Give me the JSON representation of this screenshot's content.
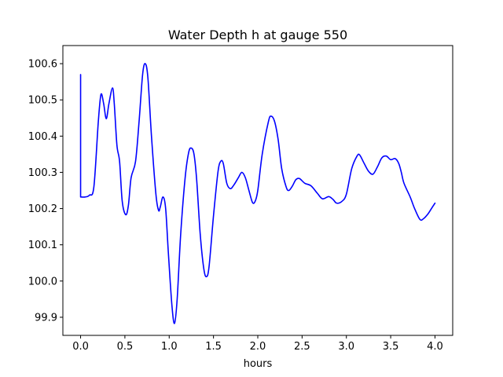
{
  "chart_data": {
    "type": "line",
    "title": "Water Depth h at gauge 550",
    "xlabel": "hours",
    "ylabel": "",
    "xlim": [
      -0.2,
      4.2
    ],
    "ylim": [
      99.85,
      100.65
    ],
    "grid": false,
    "x_ticks": [
      0.0,
      0.5,
      1.0,
      1.5,
      2.0,
      2.5,
      3.0,
      3.5,
      4.0
    ],
    "x_tick_labels": [
      "0.0",
      "0.5",
      "1.0",
      "1.5",
      "2.0",
      "2.5",
      "3.0",
      "3.5",
      "4.0"
    ],
    "y_ticks": [
      99.9,
      100.0,
      100.1,
      100.2,
      100.3,
      100.4,
      100.5,
      100.6
    ],
    "y_tick_labels": [
      "99.9",
      "100.0",
      "100.1",
      "100.2",
      "100.3",
      "100.4",
      "100.5",
      "100.6"
    ],
    "series": [
      {
        "color": "#0000ff",
        "points": [
          [
            0.0,
            100.57
          ],
          [
            0.0,
            100.232
          ],
          [
            0.05,
            100.232
          ],
          [
            0.1,
            100.237
          ],
          [
            0.15,
            100.26
          ],
          [
            0.2,
            100.44
          ],
          [
            0.23,
            100.515
          ],
          [
            0.26,
            100.49
          ],
          [
            0.29,
            100.448
          ],
          [
            0.32,
            100.49
          ],
          [
            0.36,
            100.533
          ],
          [
            0.38,
            100.49
          ],
          [
            0.41,
            100.375
          ],
          [
            0.44,
            100.33
          ],
          [
            0.47,
            100.22
          ],
          [
            0.51,
            100.183
          ],
          [
            0.54,
            100.21
          ],
          [
            0.57,
            100.285
          ],
          [
            0.62,
            100.33
          ],
          [
            0.66,
            100.44
          ],
          [
            0.7,
            100.57
          ],
          [
            0.73,
            100.6
          ],
          [
            0.76,
            100.56
          ],
          [
            0.8,
            100.4
          ],
          [
            0.85,
            100.24
          ],
          [
            0.88,
            100.195
          ],
          [
            0.9,
            100.205
          ],
          [
            0.93,
            100.232
          ],
          [
            0.96,
            100.2
          ],
          [
            0.99,
            100.08
          ],
          [
            1.03,
            99.935
          ],
          [
            1.06,
            99.883
          ],
          [
            1.09,
            99.95
          ],
          [
            1.13,
            100.13
          ],
          [
            1.18,
            100.285
          ],
          [
            1.22,
            100.355
          ],
          [
            1.25,
            100.367
          ],
          [
            1.28,
            100.35
          ],
          [
            1.31,
            100.28
          ],
          [
            1.35,
            100.13
          ],
          [
            1.39,
            100.035
          ],
          [
            1.42,
            100.012
          ],
          [
            1.45,
            100.04
          ],
          [
            1.5,
            100.18
          ],
          [
            1.55,
            100.3
          ],
          [
            1.58,
            100.33
          ],
          [
            1.61,
            100.325
          ],
          [
            1.65,
            100.27
          ],
          [
            1.69,
            100.255
          ],
          [
            1.73,
            100.265
          ],
          [
            1.78,
            100.285
          ],
          [
            1.82,
            100.3
          ],
          [
            1.86,
            100.285
          ],
          [
            1.9,
            100.25
          ],
          [
            1.94,
            100.217
          ],
          [
            1.97,
            100.22
          ],
          [
            2.0,
            100.25
          ],
          [
            2.05,
            100.35
          ],
          [
            2.12,
            100.44
          ],
          [
            2.15,
            100.455
          ],
          [
            2.19,
            100.44
          ],
          [
            2.23,
            100.39
          ],
          [
            2.27,
            100.31
          ],
          [
            2.32,
            100.26
          ],
          [
            2.35,
            100.25
          ],
          [
            2.39,
            100.262
          ],
          [
            2.43,
            100.28
          ],
          [
            2.47,
            100.283
          ],
          [
            2.53,
            100.27
          ],
          [
            2.6,
            100.263
          ],
          [
            2.67,
            100.243
          ],
          [
            2.73,
            100.227
          ],
          [
            2.8,
            100.233
          ],
          [
            2.85,
            100.225
          ],
          [
            2.89,
            100.215
          ],
          [
            2.95,
            100.22
          ],
          [
            3.0,
            100.24
          ],
          [
            3.06,
            100.31
          ],
          [
            3.12,
            100.345
          ],
          [
            3.15,
            100.348
          ],
          [
            3.2,
            100.325
          ],
          [
            3.25,
            100.303
          ],
          [
            3.3,
            100.295
          ],
          [
            3.35,
            100.315
          ],
          [
            3.4,
            100.34
          ],
          [
            3.45,
            100.345
          ],
          [
            3.5,
            100.335
          ],
          [
            3.55,
            100.338
          ],
          [
            3.59,
            100.325
          ],
          [
            3.62,
            100.3
          ],
          [
            3.65,
            100.27
          ],
          [
            3.72,
            100.232
          ],
          [
            3.77,
            100.2
          ],
          [
            3.83,
            100.17
          ],
          [
            3.87,
            100.172
          ],
          [
            3.92,
            100.185
          ],
          [
            3.96,
            100.2
          ],
          [
            4.0,
            100.215
          ]
        ]
      }
    ]
  }
}
